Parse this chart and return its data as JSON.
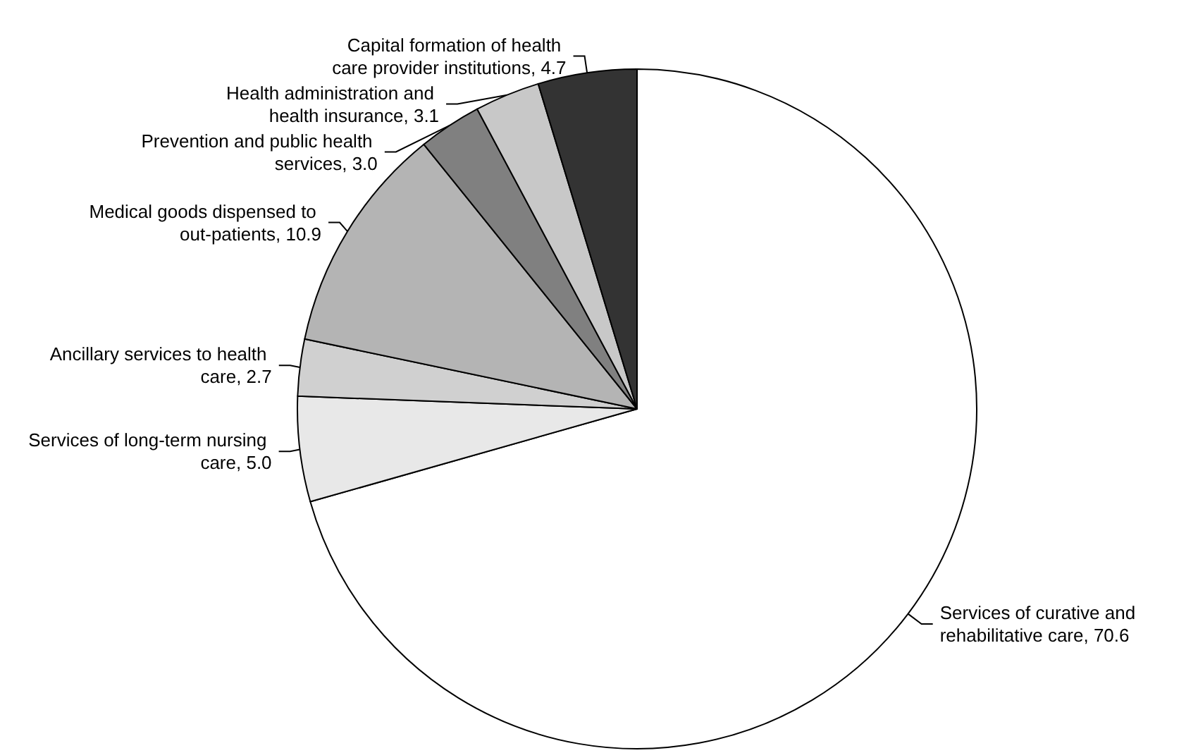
{
  "chart_data": {
    "type": "pie",
    "categories": [
      "Services of curative and rehabilitative care",
      "Services of long-term nursing care",
      "Ancillary services to health care",
      "Medical goods dispensed to out-patients",
      "Prevention and public health services",
      "Health administration and health insurance",
      "Capital formation of health care provider institutions"
    ],
    "values": [
      70.6,
      5.0,
      2.7,
      10.9,
      3.0,
      3.1,
      4.7
    ],
    "value_labels": [
      "70.6",
      "5.0",
      "2.7",
      "10.9",
      "3.0",
      "3.1",
      "4.7"
    ],
    "colors": [
      "#ffffff",
      "#e8e8e8",
      "#d0d0d0",
      "#b4b4b4",
      "#808080",
      "#c8c8c8",
      "#333333"
    ],
    "legend": false
  }
}
